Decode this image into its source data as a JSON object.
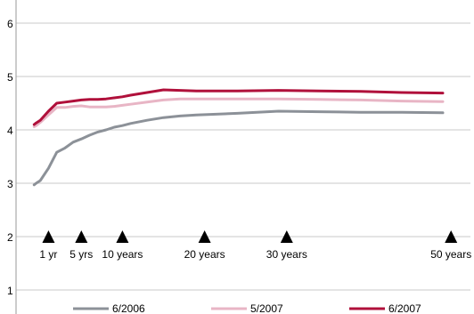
{
  "chart_data": {
    "type": "line",
    "title": "",
    "xlabel": "",
    "ylabel": "",
    "ylim": [
      1,
      6
    ],
    "yticks": [
      1,
      2,
      3,
      4,
      5,
      6
    ],
    "xlim": [
      0,
      50
    ],
    "grid": "horizontal",
    "legend_position": "bottom",
    "maturity_markers": [
      {
        "label": "1 yr",
        "x": 2
      },
      {
        "label": "5 yrs",
        "x": 6
      },
      {
        "label": "10 years",
        "x": 11
      },
      {
        "label": "20 years",
        "x": 21
      },
      {
        "label": "30 years",
        "x": 31
      },
      {
        "label": "50 years",
        "x": 51
      }
    ],
    "series": [
      {
        "name": "6/2006",
        "color": "#8c9198",
        "x": [
          0.25,
          0.5,
          1,
          2,
          3,
          4,
          5,
          6,
          7,
          8,
          9,
          10,
          11,
          12,
          14,
          16,
          18,
          20,
          25,
          30,
          35,
          40,
          45,
          50
        ],
        "y": [
          2.97,
          3.0,
          3.05,
          3.28,
          3.58,
          3.66,
          3.77,
          3.83,
          3.9,
          3.96,
          4.0,
          4.05,
          4.08,
          4.12,
          4.18,
          4.23,
          4.26,
          4.28,
          4.31,
          4.35,
          4.34,
          4.33,
          4.33,
          4.32
        ]
      },
      {
        "name": "5/2007",
        "color": "#e8b5c5",
        "x": [
          0.25,
          0.5,
          1,
          2,
          3,
          4,
          5,
          6,
          7,
          8,
          9,
          10,
          11,
          12,
          14,
          16,
          18,
          20,
          25,
          30,
          35,
          40,
          45,
          50
        ],
        "y": [
          4.06,
          4.08,
          4.14,
          4.28,
          4.42,
          4.42,
          4.44,
          4.45,
          4.43,
          4.43,
          4.43,
          4.44,
          4.46,
          4.48,
          4.52,
          4.56,
          4.58,
          4.58,
          4.58,
          4.58,
          4.57,
          4.56,
          4.54,
          4.53
        ]
      },
      {
        "name": "6/2007",
        "color": "#b0103b",
        "x": [
          0.25,
          0.5,
          1,
          2,
          3,
          4,
          5,
          6,
          7,
          8,
          9,
          10,
          11,
          12,
          14,
          16,
          18,
          20,
          25,
          30,
          35,
          40,
          45,
          50
        ],
        "y": [
          4.1,
          4.13,
          4.18,
          4.35,
          4.5,
          4.52,
          4.54,
          4.56,
          4.57,
          4.57,
          4.58,
          4.6,
          4.62,
          4.65,
          4.7,
          4.75,
          4.74,
          4.73,
          4.73,
          4.74,
          4.73,
          4.72,
          4.7,
          4.69
        ]
      }
    ]
  },
  "colors": {
    "grid": "#c9c9c9",
    "axis": "#9a9a9a",
    "marker": "#000000"
  }
}
